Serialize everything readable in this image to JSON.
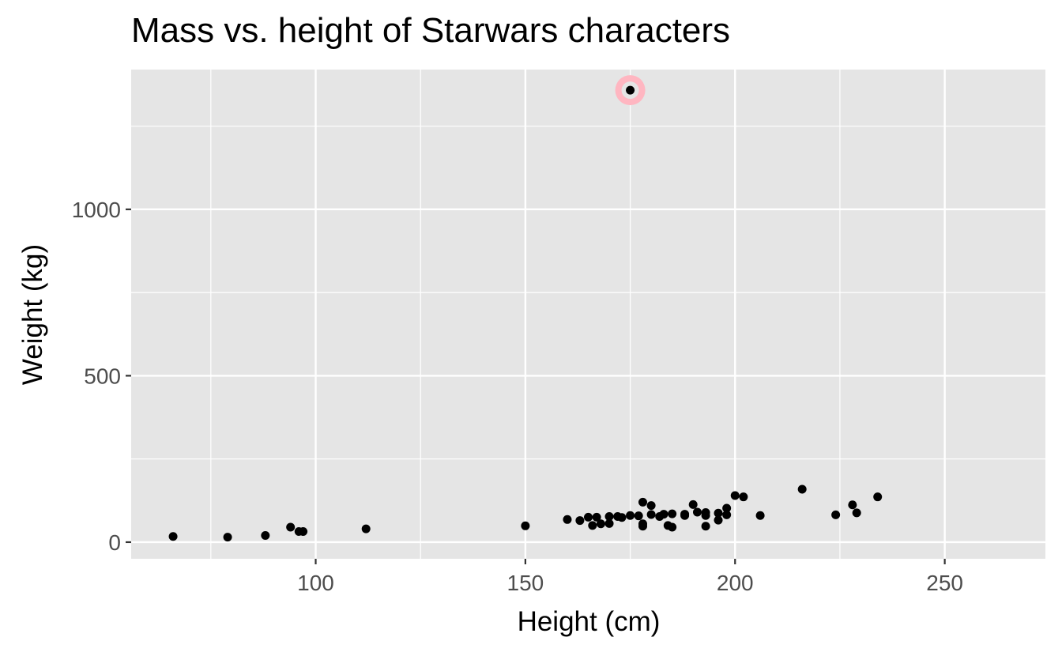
{
  "chart_data": {
    "type": "scatter",
    "title": "Mass vs. height of Starwars characters",
    "xlabel": "Height (cm)",
    "ylabel": "Weight (kg)",
    "xlim": [
      56,
      274
    ],
    "ylim": [
      -50,
      1420
    ],
    "xticks": [
      100,
      150,
      200,
      250
    ],
    "yticks": [
      0,
      500,
      1000
    ],
    "grid": true,
    "colors": {
      "panel": "#e5e5e5",
      "grid": "#ffffff",
      "point": "#000000",
      "highlight": "#ffb6c1",
      "axis_text": "#4d4d4d"
    },
    "highlight": {
      "x": 175,
      "y": 1358
    },
    "points": [
      {
        "x": 66,
        "y": 17
      },
      {
        "x": 79,
        "y": 15
      },
      {
        "x": 88,
        "y": 20
      },
      {
        "x": 94,
        "y": 45
      },
      {
        "x": 96,
        "y": 32
      },
      {
        "x": 97,
        "y": 32
      },
      {
        "x": 112,
        "y": 40
      },
      {
        "x": 150,
        "y": 49
      },
      {
        "x": 160,
        "y": 68
      },
      {
        "x": 163,
        "y": 65
      },
      {
        "x": 165,
        "y": 75
      },
      {
        "x": 166,
        "y": 50
      },
      {
        "x": 167,
        "y": 75
      },
      {
        "x": 168,
        "y": 55
      },
      {
        "x": 170,
        "y": 77
      },
      {
        "x": 170,
        "y": 56
      },
      {
        "x": 172,
        "y": 77
      },
      {
        "x": 173,
        "y": 74
      },
      {
        "x": 175,
        "y": 80
      },
      {
        "x": 177,
        "y": 79
      },
      {
        "x": 178,
        "y": 120
      },
      {
        "x": 178,
        "y": 55
      },
      {
        "x": 178,
        "y": 48
      },
      {
        "x": 180,
        "y": 110
      },
      {
        "x": 180,
        "y": 83
      },
      {
        "x": 182,
        "y": 77
      },
      {
        "x": 183,
        "y": 84
      },
      {
        "x": 184,
        "y": 50
      },
      {
        "x": 185,
        "y": 85
      },
      {
        "x": 185,
        "y": 45
      },
      {
        "x": 188,
        "y": 84
      },
      {
        "x": 188,
        "y": 80
      },
      {
        "x": 190,
        "y": 113
      },
      {
        "x": 191,
        "y": 90
      },
      {
        "x": 193,
        "y": 89
      },
      {
        "x": 193,
        "y": 80
      },
      {
        "x": 193,
        "y": 48
      },
      {
        "x": 196,
        "y": 87
      },
      {
        "x": 196,
        "y": 66
      },
      {
        "x": 198,
        "y": 102
      },
      {
        "x": 198,
        "y": 82
      },
      {
        "x": 200,
        "y": 140
      },
      {
        "x": 202,
        "y": 136
      },
      {
        "x": 206,
        "y": 80
      },
      {
        "x": 216,
        "y": 159
      },
      {
        "x": 224,
        "y": 82
      },
      {
        "x": 228,
        "y": 112
      },
      {
        "x": 229,
        "y": 88
      },
      {
        "x": 234,
        "y": 136
      },
      {
        "x": 175,
        "y": 1358
      }
    ]
  }
}
